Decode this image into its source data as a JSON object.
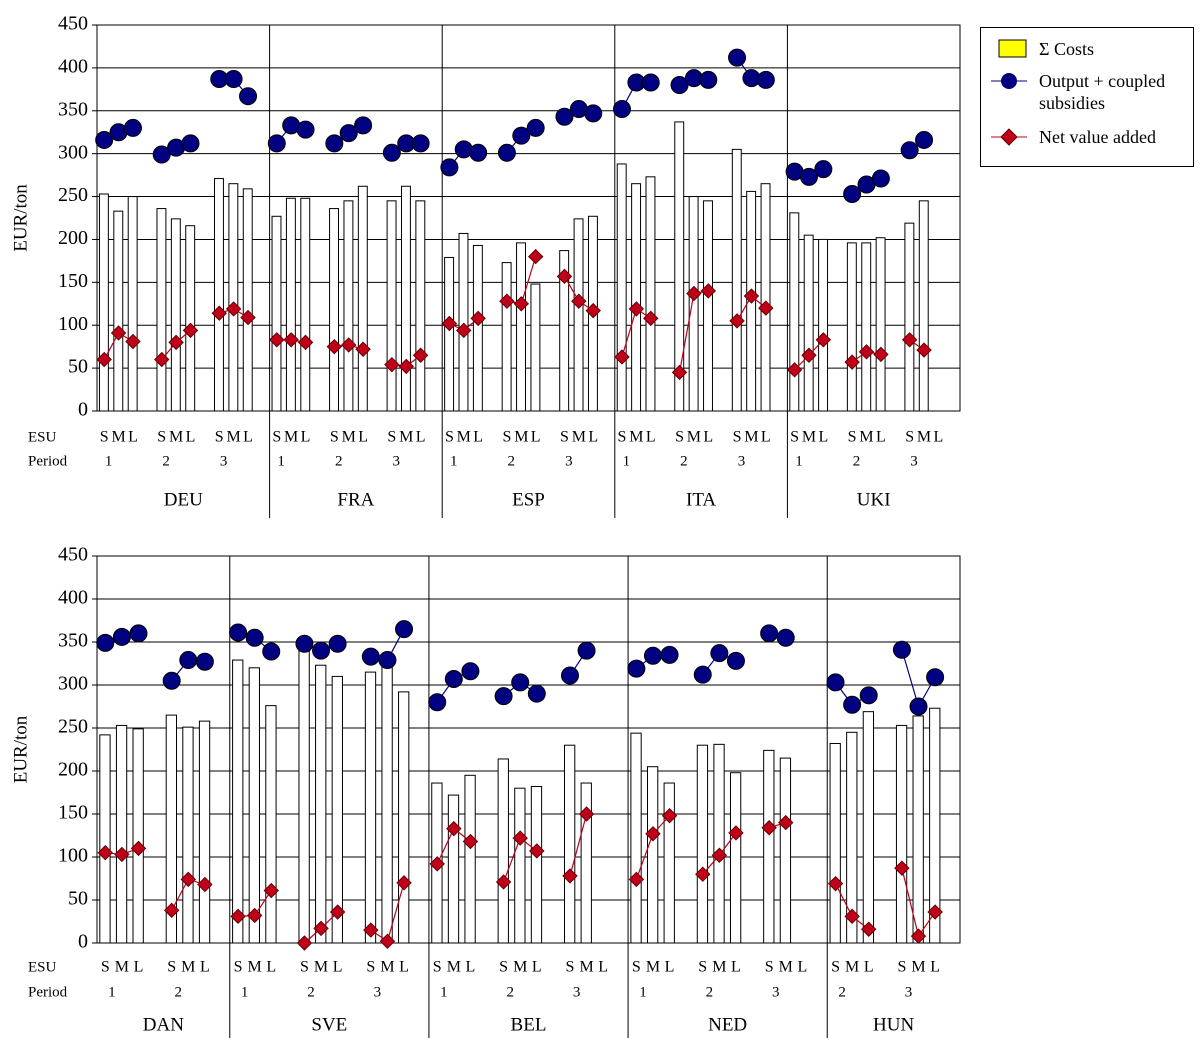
{
  "legend": [
    {
      "name": "Σ Costs",
      "color": "#ffff00"
    },
    {
      "name": "Output + coupled subsidies",
      "color": "#000080"
    },
    {
      "name": "Net value added",
      "color": "#c0001a"
    }
  ],
  "chart_data": [
    {
      "type": "combo",
      "ylabel": "EUR/ton",
      "ylim": [
        0,
        450
      ],
      "yticks": [
        0,
        50,
        100,
        150,
        200,
        250,
        300,
        350,
        400,
        450
      ],
      "grid": true,
      "bar_fill": "#ffffff",
      "row_labels": [
        "ESU",
        "Period"
      ],
      "groups": [
        {
          "label": "DEU",
          "periods": [
            {
              "label": "1",
              "esu": [
                "S",
                "M",
                "L"
              ],
              "costs": [
                253,
                233,
                250
              ],
              "output": [
                316,
                325,
                330
              ],
              "nva": [
                60,
                91,
                81
              ]
            },
            {
              "label": "2",
              "esu": [
                "S",
                "M",
                "L"
              ],
              "costs": [
                236,
                224,
                216
              ],
              "output": [
                299,
                307,
                312
              ],
              "nva": [
                60,
                80,
                94
              ]
            },
            {
              "label": "3",
              "esu": [
                "S",
                "M",
                "L"
              ],
              "costs": [
                271,
                265,
                259
              ],
              "output": [
                387,
                387,
                367
              ],
              "nva": [
                114,
                119,
                109
              ]
            }
          ]
        },
        {
          "label": "FRA",
          "periods": [
            {
              "label": "1",
              "esu": [
                "S",
                "M",
                "L"
              ],
              "costs": [
                227,
                248,
                248
              ],
              "output": [
                312,
                333,
                328
              ],
              "nva": [
                83,
                83,
                80
              ]
            },
            {
              "label": "2",
              "esu": [
                "S",
                "M",
                "L"
              ],
              "costs": [
                236,
                245,
                262
              ],
              "output": [
                312,
                324,
                333
              ],
              "nva": [
                75,
                77,
                72
              ]
            },
            {
              "label": "3",
              "esu": [
                "S",
                "M",
                "L"
              ],
              "costs": [
                245,
                262,
                245
              ],
              "output": [
                301,
                312,
                312
              ],
              "nva": [
                54,
                52,
                65
              ]
            }
          ]
        },
        {
          "label": "ESP",
          "periods": [
            {
              "label": "1",
              "esu": [
                "S",
                "M",
                "L"
              ],
              "costs": [
                179,
                207,
                193
              ],
              "output": [
                284,
                305,
                301
              ],
              "nva": [
                102,
                94,
                108
              ]
            },
            {
              "label": "2",
              "esu": [
                "S",
                "M",
                "L"
              ],
              "costs": [
                173,
                196,
                148
              ],
              "output": [
                301,
                321,
                330
              ],
              "nva": [
                128,
                125,
                180
              ]
            },
            {
              "label": "3",
              "esu": [
                "S",
                "M",
                "L"
              ],
              "costs": [
                187,
                224,
                227
              ],
              "output": [
                343,
                352,
                347
              ],
              "nva": [
                157,
                128,
                117
              ]
            }
          ]
        },
        {
          "label": "ITA",
          "periods": [
            {
              "label": "1",
              "esu": [
                "S",
                "M",
                "L"
              ],
              "costs": [
                288,
                265,
                273
              ],
              "output": [
                352,
                383,
                383
              ],
              "nva": [
                63,
                119,
                108
              ]
            },
            {
              "label": "2",
              "esu": [
                "S",
                "M",
                "L"
              ],
              "costs": [
                337,
                250,
                245
              ],
              "output": [
                380,
                388,
                386
              ],
              "nva": [
                45,
                137,
                140
              ]
            },
            {
              "label": "3",
              "esu": [
                "S",
                "M",
                "L"
              ],
              "costs": [
                305,
                256,
                265
              ],
              "output": [
                412,
                388,
                386
              ],
              "nva": [
                105,
                134,
                120
              ]
            }
          ]
        },
        {
          "label": "UKI",
          "periods": [
            {
              "label": "1",
              "esu": [
                "S",
                "M",
                "L"
              ],
              "costs": [
                231,
                205,
                200
              ],
              "output": [
                279,
                273,
                282
              ],
              "nva": [
                48,
                65,
                83
              ]
            },
            {
              "label": "2",
              "esu": [
                "S",
                "M",
                "L"
              ],
              "costs": [
                196,
                196,
                202
              ],
              "output": [
                253,
                264,
                271
              ],
              "nva": [
                57,
                69,
                66
              ]
            },
            {
              "label": "3",
              "esu": [
                "S",
                "M",
                "L"
              ],
              "costs": [
                219,
                245,
                null
              ],
              "output": [
                304,
                316,
                null
              ],
              "nva": [
                83,
                71,
                null
              ]
            }
          ]
        }
      ]
    },
    {
      "type": "combo",
      "ylabel": "EUR/ton",
      "ylim": [
        0,
        450
      ],
      "yticks": [
        0,
        50,
        100,
        150,
        200,
        250,
        300,
        350,
        400,
        450
      ],
      "grid": true,
      "bar_fill": "#ffffff",
      "row_labels": [
        "ESU",
        "Period"
      ],
      "groups": [
        {
          "label": "DAN",
          "periods": [
            {
              "label": "1",
              "esu": [
                "S",
                "M",
                "L"
              ],
              "costs": [
                242,
                253,
                249
              ],
              "output": [
                349,
                356,
                360
              ],
              "nva": [
                105,
                103,
                110
              ]
            },
            {
              "label": "2",
              "esu": [
                "S",
                "M",
                "L"
              ],
              "costs": [
                265,
                251,
                258
              ],
              "output": [
                305,
                329,
                327
              ],
              "nva": [
                38,
                74,
                68
              ]
            }
          ]
        },
        {
          "label": "SVE",
          "periods": [
            {
              "label": "1",
              "esu": [
                "S",
                "M",
                "L"
              ],
              "costs": [
                329,
                320,
                276
              ],
              "output": [
                361,
                355,
                339
              ],
              "nva": [
                31,
                32,
                61
              ]
            },
            {
              "label": "2",
              "esu": [
                "S",
                "M",
                "L"
              ],
              "costs": [
                347,
                323,
                310
              ],
              "output": [
                348,
                340,
                348
              ],
              "nva": [
                0,
                17,
                36
              ]
            },
            {
              "label": "3",
              "esu": [
                "S",
                "M",
                "L"
              ],
              "costs": [
                315,
                333,
                292
              ],
              "output": [
                333,
                329,
                365
              ],
              "nva": [
                15,
                2,
                70
              ]
            }
          ]
        },
        {
          "label": "BEL",
          "periods": [
            {
              "label": "1",
              "esu": [
                "S",
                "M",
                "L"
              ],
              "costs": [
                186,
                172,
                195
              ],
              "output": [
                280,
                307,
                316
              ],
              "nva": [
                92,
                133,
                118
              ]
            },
            {
              "label": "2",
              "esu": [
                "S",
                "M",
                "L"
              ],
              "costs": [
                214,
                180,
                182
              ],
              "output": [
                287,
                303,
                290
              ],
              "nva": [
                71,
                122,
                107
              ]
            },
            {
              "label": "3",
              "esu": [
                "S",
                "M",
                "L"
              ],
              "costs": [
                230,
                186,
                null
              ],
              "output": [
                311,
                340,
                null
              ],
              "nva": [
                78,
                150,
                null
              ]
            }
          ]
        },
        {
          "label": "NED",
          "periods": [
            {
              "label": "1",
              "esu": [
                "S",
                "M",
                "L"
              ],
              "costs": [
                244,
                205,
                186
              ],
              "output": [
                319,
                334,
                335
              ],
              "nva": [
                74,
                127,
                148
              ]
            },
            {
              "label": "2",
              "esu": [
                "S",
                "M",
                "L"
              ],
              "costs": [
                230,
                231,
                198
              ],
              "output": [
                312,
                337,
                328
              ],
              "nva": [
                80,
                102,
                128
              ]
            },
            {
              "label": "3",
              "esu": [
                "S",
                "M",
                "L"
              ],
              "costs": [
                224,
                215,
                null
              ],
              "output": [
                360,
                355,
                null
              ],
              "nva": [
                134,
                140,
                null
              ]
            }
          ]
        },
        {
          "label": "HUN",
          "periods": [
            {
              "label": "2",
              "esu": [
                "S",
                "M",
                "L"
              ],
              "costs": [
                232,
                245,
                269
              ],
              "output": [
                303,
                277,
                288
              ],
              "nva": [
                69,
                31,
                16
              ]
            },
            {
              "label": "3",
              "esu": [
                "S",
                "M",
                "L"
              ],
              "costs": [
                253,
                264,
                273
              ],
              "output": [
                341,
                275,
                309
              ],
              "nva": [
                87,
                8,
                36
              ]
            }
          ]
        }
      ]
    }
  ]
}
